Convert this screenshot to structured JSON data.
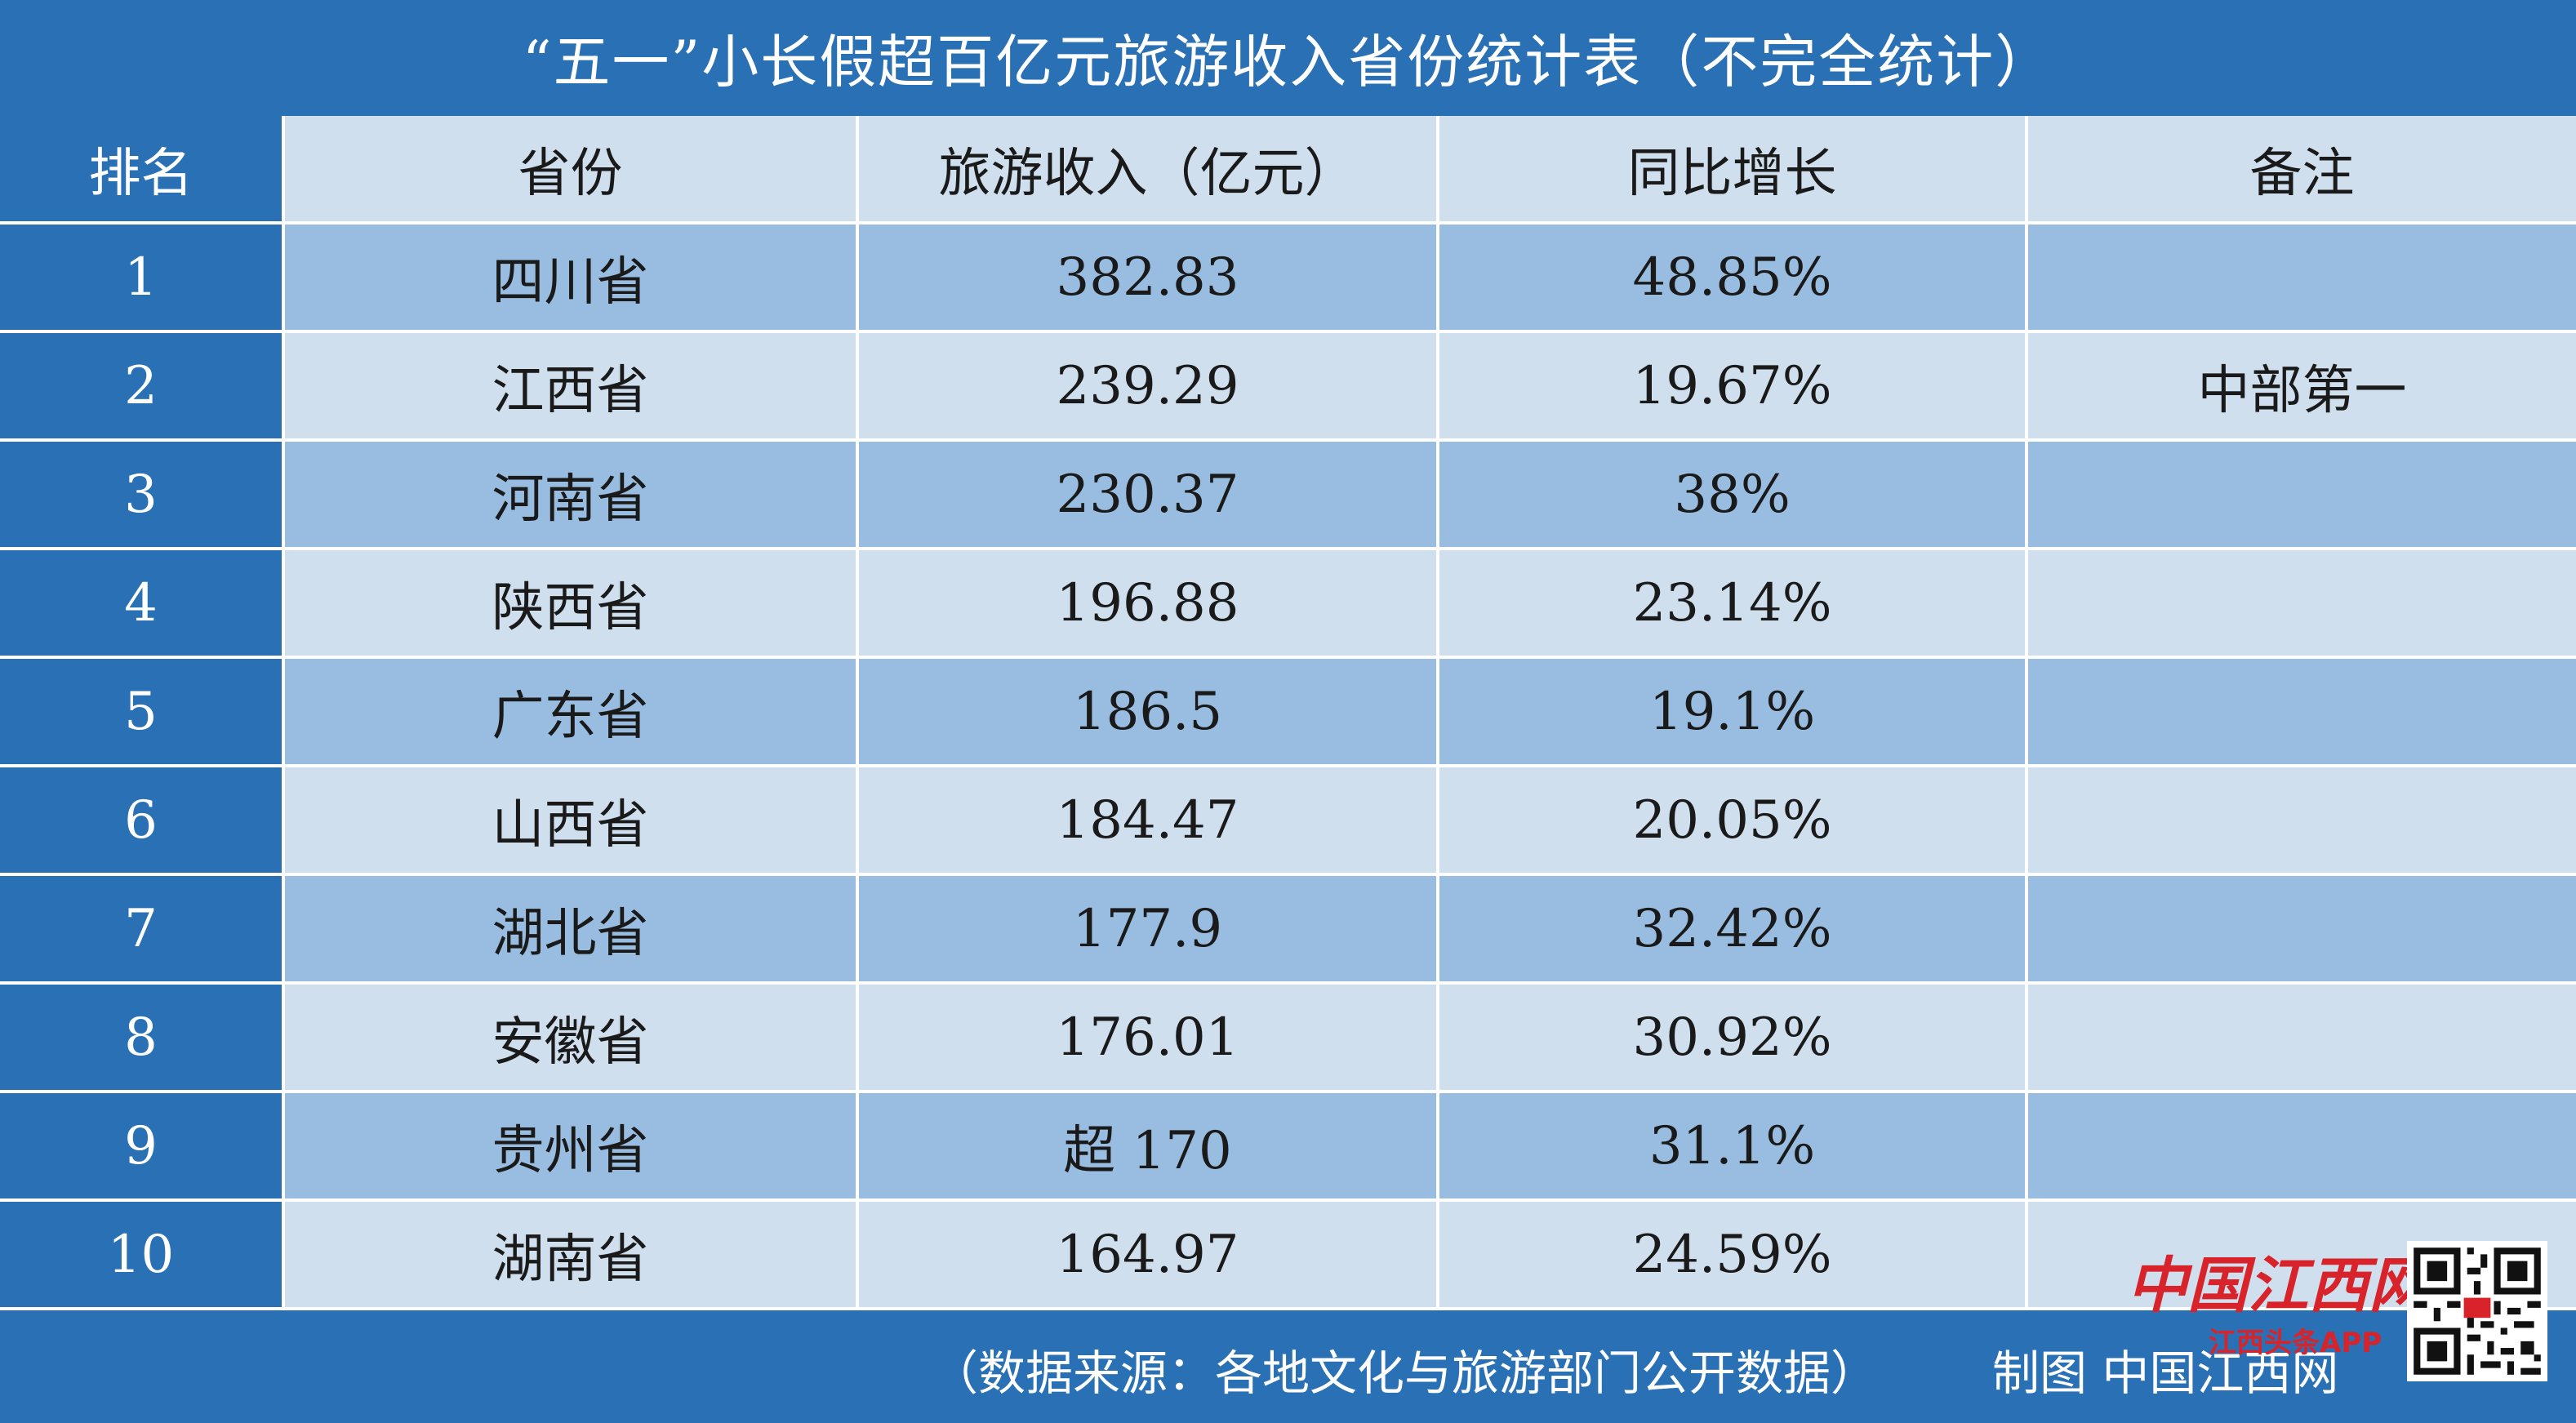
{
  "title": "“五一”小长假超百亿元旅游收入省份统计表（不完全统计）",
  "headers": {
    "rank": "排名",
    "province": "省份",
    "income": "旅游收入（亿元）",
    "yoy": "同比增长",
    "note": "备注"
  },
  "rows": [
    {
      "rank": "1",
      "province": "四川省",
      "income": "382.83",
      "yoy": "48.85%",
      "note": ""
    },
    {
      "rank": "2",
      "province": "江西省",
      "income": "239.29",
      "yoy": "19.67%",
      "note": "中部第一"
    },
    {
      "rank": "3",
      "province": "河南省",
      "income": "230.37",
      "yoy": "38%",
      "note": ""
    },
    {
      "rank": "4",
      "province": "陕西省",
      "income": "196.88",
      "yoy": "23.14%",
      "note": ""
    },
    {
      "rank": "5",
      "province": "广东省",
      "income": "186.5",
      "yoy": "19.1%",
      "note": ""
    },
    {
      "rank": "6",
      "province": "山西省",
      "income": "184.47",
      "yoy": "20.05%",
      "note": ""
    },
    {
      "rank": "7",
      "province": "湖北省",
      "income": "177.9",
      "yoy": "32.42%",
      "note": ""
    },
    {
      "rank": "8",
      "province": "安徽省",
      "income": "176.01",
      "yoy": "30.92%",
      "note": ""
    },
    {
      "rank": "9",
      "province": "贵州省",
      "income": "超 170",
      "yoy": "31.1%",
      "note": ""
    },
    {
      "rank": "10",
      "province": "湖南省",
      "income": "164.97",
      "yoy": "24.59%",
      "note": ""
    }
  ],
  "footer": {
    "source": "（数据来源：各地文化与旅游部门公开数据）",
    "credit": "制图  中国江西网"
  },
  "logo": {
    "main": "中国江西网",
    "sub": "江西头条APP"
  },
  "colors": {
    "background": "#2a70b5",
    "header_row": "#cfdfee",
    "row_dark": "#98bde0",
    "row_light": "#cfdfee",
    "logo_red": "#d8232a"
  }
}
